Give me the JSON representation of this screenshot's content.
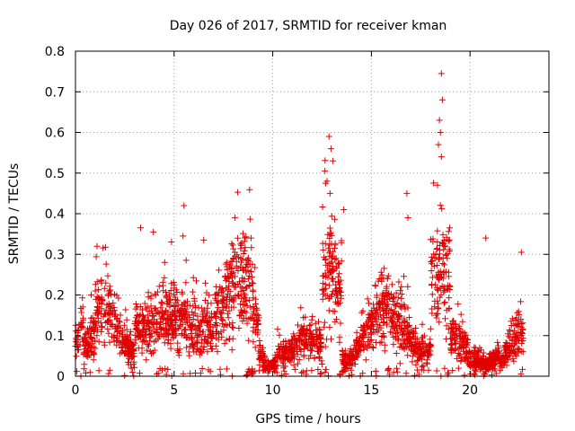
{
  "chart_data": {
    "type": "scatter",
    "title": "Day 026 of 2017, SRMTID for receiver kman",
    "xlabel": "GPS time / hours",
    "ylabel": "SRMTID / TECUs",
    "xlim": [
      0,
      24
    ],
    "ylim": [
      0,
      0.8
    ],
    "x_ticks": [
      0,
      5,
      10,
      15,
      20
    ],
    "x_tick_labels": [
      "0",
      "5",
      "10",
      "15",
      "20"
    ],
    "y_ticks": [
      0,
      0.1,
      0.2,
      0.3,
      0.4,
      0.5,
      0.6,
      0.7,
      0.8
    ],
    "y_tick_labels": [
      "0",
      "0.1",
      "0.2",
      "0.3",
      "0.4",
      "0.5",
      "0.6",
      "0.7",
      "0.8"
    ],
    "grid": true,
    "marker": "plus",
    "color": "#e00000",
    "series": [
      {
        "name": "SRMTID",
        "sampling": "generated",
        "x_range": [
          0,
          22.7
        ],
        "point_count": 3400,
        "notes": "dense scatter, typical 0-0.3 TECU, bursts near 12.9h and 18.5h",
        "highlight_points": [
          {
            "x": 12.85,
            "y": 0.59
          },
          {
            "x": 12.95,
            "y": 0.56
          },
          {
            "x": 13.05,
            "y": 0.53
          },
          {
            "x": 12.75,
            "y": 0.48
          },
          {
            "x": 12.9,
            "y": 0.45
          },
          {
            "x": 13.6,
            "y": 0.41
          },
          {
            "x": 18.55,
            "y": 0.745
          },
          {
            "x": 18.6,
            "y": 0.68
          },
          {
            "x": 18.45,
            "y": 0.63
          },
          {
            "x": 18.5,
            "y": 0.6
          },
          {
            "x": 18.4,
            "y": 0.57
          },
          {
            "x": 18.55,
            "y": 0.54
          },
          {
            "x": 18.35,
            "y": 0.47
          },
          {
            "x": 16.8,
            "y": 0.45
          },
          {
            "x": 16.85,
            "y": 0.39
          },
          {
            "x": 5.5,
            "y": 0.42
          },
          {
            "x": 3.3,
            "y": 0.365
          },
          {
            "x": 3.95,
            "y": 0.355
          },
          {
            "x": 20.8,
            "y": 0.34
          },
          {
            "x": 22.6,
            "y": 0.305
          },
          {
            "x": 5.45,
            "y": 0.345
          },
          {
            "x": 8.9,
            "y": 0.34
          },
          {
            "x": 6.5,
            "y": 0.335
          }
        ]
      }
    ]
  }
}
